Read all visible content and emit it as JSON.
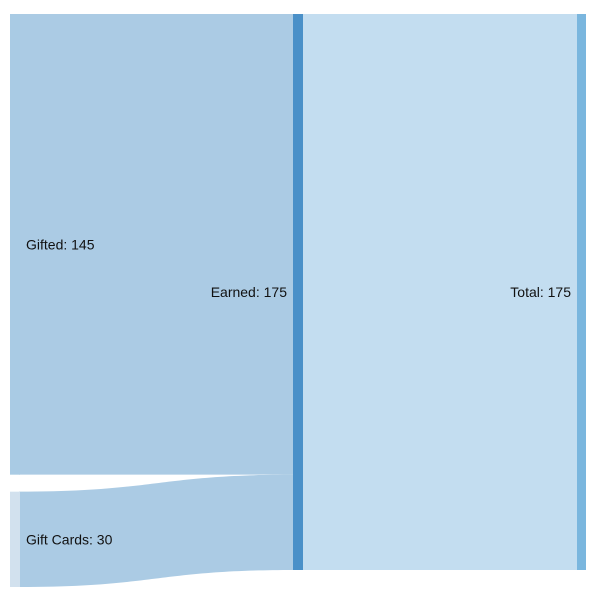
{
  "chart_data": {
    "type": "sankey",
    "nodes": [
      {
        "id": "gifted",
        "name": "Gifted",
        "value": 145,
        "label": "Gifted: 145",
        "column": 0,
        "color": "#a9cbe4"
      },
      {
        "id": "giftcards",
        "name": "Gift Cards",
        "value": 30,
        "label": "Gift Cards: 30",
        "column": 0,
        "color": "#d2e1ee"
      },
      {
        "id": "earned",
        "name": "Earned",
        "value": 175,
        "label": "Earned: 175",
        "column": 1,
        "color": "#4a90c8"
      },
      {
        "id": "total",
        "name": "Total",
        "value": 175,
        "label": "Total: 175",
        "column": 2,
        "color": "#7ab6de"
      }
    ],
    "links": [
      {
        "source": "gifted",
        "target": "earned",
        "value": 145,
        "color": "#abcbe4"
      },
      {
        "source": "giftcards",
        "target": "earned",
        "value": 30,
        "color": "#abcbe4"
      },
      {
        "source": "earned",
        "target": "total",
        "value": 175,
        "color": "#c3ddf0"
      }
    ]
  }
}
